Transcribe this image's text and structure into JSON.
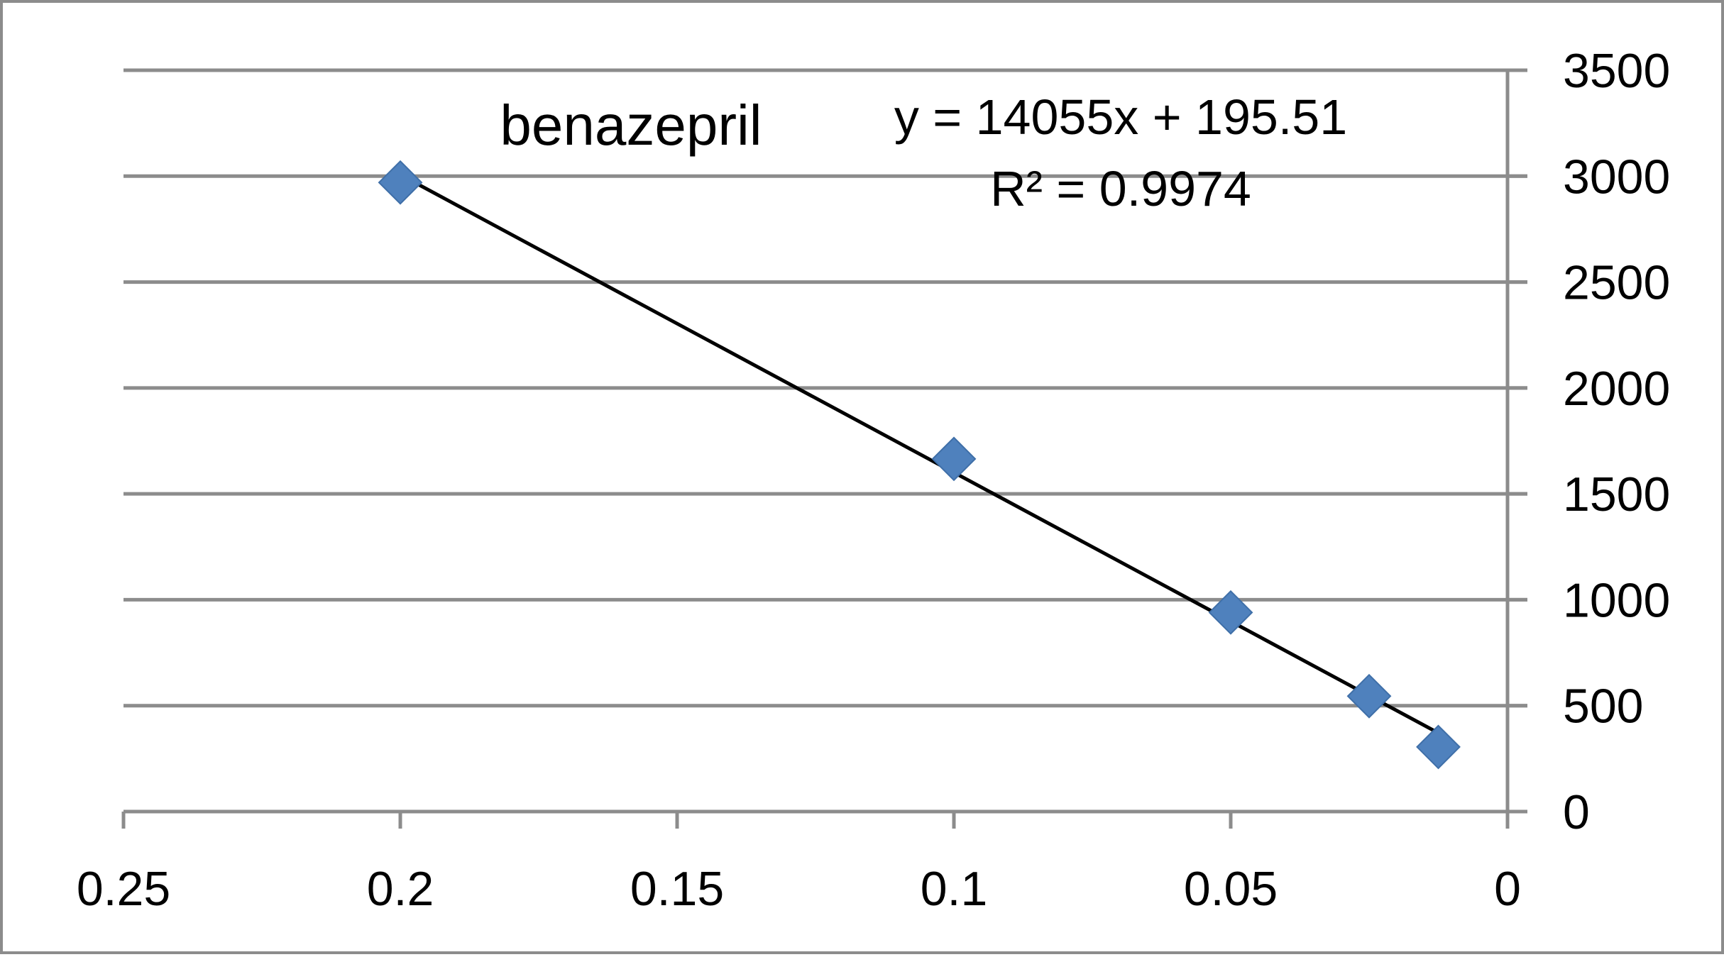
{
  "chart_data": {
    "type": "scatter",
    "title": "benazepril",
    "xlabel": "",
    "ylabel": "",
    "x_axis_reversed": true,
    "y_axis_position": "right",
    "xlim": [
      0,
      0.25
    ],
    "ylim": [
      0,
      3500
    ],
    "x_ticks": [
      0.25,
      0.2,
      0.15,
      0.1,
      0.05,
      0
    ],
    "x_tick_labels": [
      "0.25",
      "0.2",
      "0.15",
      "0.1",
      "0.05",
      "0"
    ],
    "y_ticks": [
      0,
      500,
      1000,
      1500,
      2000,
      2500,
      3000,
      3500
    ],
    "y_tick_labels": [
      "0",
      "500",
      "1000",
      "1500",
      "2000",
      "2500",
      "3000",
      "3500"
    ],
    "grid": "horizontal",
    "legend": "none",
    "series": [
      {
        "marker": "diamond",
        "color": "#4f81bd",
        "points": [
          {
            "x": 0.2,
            "y": 2970
          },
          {
            "x": 0.1,
            "y": 1665
          },
          {
            "x": 0.05,
            "y": 940
          },
          {
            "x": 0.025,
            "y": 545
          },
          {
            "x": 0.0125,
            "y": 305
          }
        ]
      }
    ],
    "trendline": {
      "type": "linear",
      "slope": 14055,
      "intercept": 195.51,
      "x_range": [
        0.0125,
        0.2
      ],
      "color": "#000000",
      "equation_label": "y = 14055x + 195.51",
      "r2_label": "R² = 0.9974"
    }
  }
}
